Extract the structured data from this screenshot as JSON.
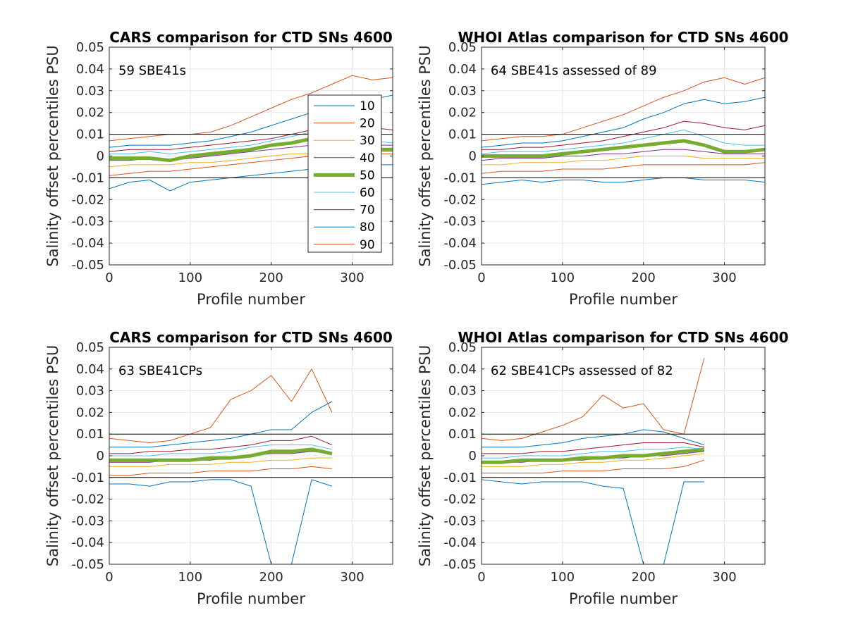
{
  "colors": {
    "10": "#0072BD",
    "20": "#D95319",
    "30": "#EDB120",
    "40": "#7E2F8E",
    "50": "#77AC30",
    "60": "#4DBEEE",
    "70": "#A2142F",
    "80": "#0072BD",
    "90": "#D95319"
  },
  "chart_data": [
    {
      "type": "line",
      "title": "CARS comparison for CTD SNs 4600",
      "annotation": "59 SBE41s",
      "xlabel": "Profile number",
      "ylabel": "Salinity offset percentiles PSU",
      "xlim": [
        0,
        350
      ],
      "ylim": [
        -0.05,
        0.05
      ],
      "xticks": [
        "0",
        "100",
        "200",
        "300"
      ],
      "yticks": [
        "-0.05",
        "-0.04",
        "-0.03",
        "-0.02",
        "-0.01",
        "0",
        "0.01",
        "0.02",
        "0.03",
        "0.04",
        "0.05"
      ],
      "grid": true,
      "reference_lines": [
        0.01,
        -0.01
      ],
      "legend": {
        "placement": "inside right",
        "entries": [
          "10",
          "20",
          "30",
          "40",
          "50",
          "60",
          "70",
          "80",
          "90"
        ]
      },
      "x": [
        0,
        25,
        50,
        75,
        100,
        125,
        150,
        175,
        200,
        225,
        250,
        275,
        300,
        325,
        350
      ],
      "series": [
        {
          "name": "10",
          "values": [
            -0.015,
            -0.012,
            -0.011,
            -0.016,
            -0.012,
            -0.011,
            -0.01,
            -0.009,
            -0.008,
            -0.007,
            -0.006,
            -0.005,
            -0.005,
            -0.004,
            -0.004
          ]
        },
        {
          "name": "20",
          "values": [
            -0.009,
            -0.008,
            -0.007,
            -0.007,
            -0.006,
            -0.005,
            -0.004,
            -0.003,
            -0.002,
            -0.001,
            0.0,
            0.0,
            0.001,
            0.001,
            0.001
          ]
        },
        {
          "name": "30",
          "values": [
            -0.005,
            -0.004,
            -0.004,
            -0.004,
            -0.003,
            -0.003,
            -0.002,
            -0.001,
            0.0,
            0.001,
            0.001,
            0.002,
            0.002,
            0.002,
            0.002
          ]
        },
        {
          "name": "40",
          "values": [
            -0.002,
            -0.002,
            -0.001,
            -0.002,
            -0.001,
            0.0,
            0.001,
            0.002,
            0.003,
            0.004,
            0.005,
            0.005,
            0.006,
            0.005,
            0.005
          ]
        },
        {
          "name": "50",
          "values": [
            -0.001,
            -0.001,
            -0.001,
            -0.002,
            0.0,
            0.001,
            0.002,
            0.003,
            0.005,
            0.006,
            0.008,
            0.006,
            0.004,
            0.003,
            0.003
          ]
        },
        {
          "name": "60",
          "values": [
            0.001,
            0.001,
            0.002,
            0.001,
            0.002,
            0.003,
            0.004,
            0.005,
            0.007,
            0.009,
            0.011,
            0.01,
            0.008,
            0.007,
            0.006
          ]
        },
        {
          "name": "70",
          "values": [
            0.002,
            0.003,
            0.003,
            0.003,
            0.004,
            0.005,
            0.006,
            0.007,
            0.008,
            0.01,
            0.012,
            0.013,
            0.014,
            0.013,
            0.012
          ]
        },
        {
          "name": "80",
          "values": [
            0.004,
            0.005,
            0.005,
            0.005,
            0.006,
            0.007,
            0.009,
            0.011,
            0.014,
            0.017,
            0.02,
            0.022,
            0.024,
            0.026,
            0.028
          ]
        },
        {
          "name": "90",
          "values": [
            0.007,
            0.008,
            0.009,
            0.01,
            0.01,
            0.011,
            0.014,
            0.018,
            0.022,
            0.026,
            0.029,
            0.033,
            0.037,
            0.035,
            0.036
          ]
        }
      ]
    },
    {
      "type": "line",
      "title": "WHOI Atlas comparison for CTD SNs 4600",
      "annotation": "64 SBE41s assessed of 89",
      "xlabel": "Profile number",
      "ylabel": "Salinity offset percentiles PSU",
      "xlim": [
        0,
        350
      ],
      "ylim": [
        -0.05,
        0.05
      ],
      "xticks": [
        "0",
        "100",
        "200",
        "300"
      ],
      "yticks": [
        "-0.05",
        "-0.04",
        "-0.03",
        "-0.02",
        "-0.01",
        "0",
        "0.01",
        "0.02",
        "0.03",
        "0.04",
        "0.05"
      ],
      "grid": true,
      "reference_lines": [
        0.01,
        -0.01
      ],
      "x": [
        0,
        25,
        50,
        75,
        100,
        125,
        150,
        175,
        200,
        225,
        250,
        275,
        300,
        325,
        350
      ],
      "series": [
        {
          "name": "10",
          "values": [
            -0.013,
            -0.012,
            -0.011,
            -0.012,
            -0.011,
            -0.011,
            -0.012,
            -0.012,
            -0.011,
            -0.01,
            -0.01,
            -0.011,
            -0.011,
            -0.011,
            -0.012
          ]
        },
        {
          "name": "20",
          "values": [
            -0.008,
            -0.007,
            -0.007,
            -0.007,
            -0.006,
            -0.006,
            -0.006,
            -0.005,
            -0.004,
            -0.004,
            -0.004,
            -0.004,
            -0.004,
            -0.004,
            -0.003
          ]
        },
        {
          "name": "30",
          "values": [
            -0.004,
            -0.004,
            -0.003,
            -0.003,
            -0.003,
            -0.002,
            -0.002,
            -0.001,
            0.0,
            0.0,
            0.0,
            -0.001,
            -0.001,
            -0.001,
            -0.001
          ]
        },
        {
          "name": "40",
          "values": [
            -0.002,
            -0.001,
            -0.001,
            -0.001,
            0.0,
            0.0,
            0.001,
            0.001,
            0.002,
            0.003,
            0.003,
            0.002,
            0.001,
            0.001,
            0.001
          ]
        },
        {
          "name": "50",
          "values": [
            0.0,
            0.0,
            0.0,
            0.0,
            0.001,
            0.002,
            0.003,
            0.004,
            0.005,
            0.006,
            0.007,
            0.005,
            0.002,
            0.002,
            0.003
          ]
        },
        {
          "name": "60",
          "values": [
            0.001,
            0.002,
            0.002,
            0.002,
            0.003,
            0.004,
            0.005,
            0.006,
            0.008,
            0.01,
            0.012,
            0.009,
            0.006,
            0.005,
            0.005
          ]
        },
        {
          "name": "70",
          "values": [
            0.003,
            0.003,
            0.004,
            0.004,
            0.005,
            0.006,
            0.007,
            0.009,
            0.011,
            0.013,
            0.016,
            0.015,
            0.013,
            0.012,
            0.014
          ]
        },
        {
          "name": "80",
          "values": [
            0.004,
            0.005,
            0.006,
            0.006,
            0.007,
            0.009,
            0.011,
            0.013,
            0.017,
            0.02,
            0.024,
            0.026,
            0.024,
            0.025,
            0.027
          ]
        },
        {
          "name": "90",
          "values": [
            0.007,
            0.008,
            0.009,
            0.009,
            0.01,
            0.013,
            0.016,
            0.019,
            0.023,
            0.027,
            0.03,
            0.034,
            0.036,
            0.033,
            0.036
          ]
        }
      ]
    },
    {
      "type": "line",
      "title": "CARS comparison for CTD SNs 4600",
      "annotation": "63 SBE41CPs",
      "xlabel": "Profile number",
      "ylabel": "Salinity offset percentiles PSU",
      "xlim": [
        0,
        350
      ],
      "ylim": [
        -0.05,
        0.05
      ],
      "xticks": [
        "0",
        "100",
        "200",
        "300"
      ],
      "yticks": [
        "-0.05",
        "-0.04",
        "-0.03",
        "-0.02",
        "-0.01",
        "0",
        "0.01",
        "0.02",
        "0.03",
        "0.04",
        "0.05"
      ],
      "grid": true,
      "reference_lines": [
        0.01,
        -0.01
      ],
      "x": [
        0,
        25,
        50,
        75,
        100,
        125,
        150,
        175,
        200,
        225,
        250,
        275
      ],
      "series": [
        {
          "name": "10",
          "values": [
            -0.013,
            -0.013,
            -0.014,
            -0.012,
            -0.012,
            -0.011,
            -0.011,
            -0.014,
            -0.05,
            -0.05,
            -0.011,
            -0.014
          ]
        },
        {
          "name": "20",
          "values": [
            -0.009,
            -0.009,
            -0.008,
            -0.008,
            -0.008,
            -0.007,
            -0.007,
            -0.007,
            -0.006,
            -0.006,
            -0.005,
            -0.006
          ]
        },
        {
          "name": "30",
          "values": [
            -0.005,
            -0.005,
            -0.005,
            -0.004,
            -0.004,
            -0.004,
            -0.003,
            -0.003,
            -0.002,
            -0.002,
            -0.001,
            -0.001
          ]
        },
        {
          "name": "40",
          "values": [
            -0.003,
            -0.003,
            -0.003,
            -0.002,
            -0.002,
            -0.002,
            -0.001,
            0.0,
            0.001,
            0.001,
            0.002,
            0.001
          ]
        },
        {
          "name": "50",
          "values": [
            -0.002,
            -0.002,
            -0.002,
            -0.002,
            -0.002,
            -0.001,
            -0.001,
            0.0,
            0.002,
            0.002,
            0.003,
            0.001
          ]
        },
        {
          "name": "60",
          "values": [
            0.0,
            0.0,
            0.0,
            0.001,
            0.001,
            0.001,
            0.002,
            0.004,
            0.005,
            0.005,
            0.005,
            0.003
          ]
        },
        {
          "name": "70",
          "values": [
            0.001,
            0.001,
            0.002,
            0.002,
            0.003,
            0.003,
            0.004,
            0.005,
            0.007,
            0.007,
            0.009,
            0.005
          ]
        },
        {
          "name": "80",
          "values": [
            0.004,
            0.004,
            0.004,
            0.005,
            0.006,
            0.007,
            0.008,
            0.01,
            0.012,
            0.012,
            0.02,
            0.025
          ]
        },
        {
          "name": "90",
          "values": [
            0.008,
            0.007,
            0.006,
            0.007,
            0.01,
            0.013,
            0.026,
            0.03,
            0.037,
            0.025,
            0.04,
            0.02
          ]
        }
      ]
    },
    {
      "type": "line",
      "title": "WHOI Atlas comparison for CTD SNs 4600",
      "annotation": "62 SBE41CPs assessed of 82",
      "xlabel": "Profile number",
      "ylabel": "Salinity offset percentiles PSU",
      "xlim": [
        0,
        350
      ],
      "ylim": [
        -0.05,
        0.05
      ],
      "xticks": [
        "0",
        "100",
        "200",
        "300"
      ],
      "yticks": [
        "-0.05",
        "-0.04",
        "-0.03",
        "-0.02",
        "-0.01",
        "0",
        "0.01",
        "0.02",
        "0.03",
        "0.04",
        "0.05"
      ],
      "grid": true,
      "reference_lines": [
        0.01,
        -0.01
      ],
      "x": [
        0,
        25,
        50,
        75,
        100,
        125,
        150,
        175,
        200,
        225,
        250,
        275
      ],
      "series": [
        {
          "name": "10",
          "values": [
            -0.011,
            -0.012,
            -0.013,
            -0.012,
            -0.012,
            -0.012,
            -0.014,
            -0.015,
            -0.05,
            -0.05,
            -0.012,
            -0.012
          ]
        },
        {
          "name": "20",
          "values": [
            -0.008,
            -0.008,
            -0.008,
            -0.008,
            -0.007,
            -0.007,
            -0.007,
            -0.006,
            -0.006,
            -0.006,
            -0.005,
            -0.002
          ]
        },
        {
          "name": "30",
          "values": [
            -0.005,
            -0.005,
            -0.005,
            -0.004,
            -0.004,
            -0.003,
            -0.003,
            -0.002,
            -0.002,
            -0.001,
            0.0,
            0.001
          ]
        },
        {
          "name": "40",
          "values": [
            -0.003,
            -0.003,
            -0.003,
            -0.002,
            -0.002,
            -0.002,
            -0.001,
            -0.001,
            0.0,
            0.0,
            0.001,
            0.002
          ]
        },
        {
          "name": "50",
          "values": [
            -0.003,
            -0.003,
            -0.002,
            -0.002,
            -0.002,
            -0.001,
            -0.001,
            0.0,
            0.0,
            0.001,
            0.002,
            0.003
          ]
        },
        {
          "name": "60",
          "values": [
            -0.001,
            -0.001,
            0.0,
            0.0,
            0.0,
            0.001,
            0.002,
            0.002,
            0.003,
            0.003,
            0.004,
            0.003
          ]
        },
        {
          "name": "70",
          "values": [
            0.001,
            0.001,
            0.001,
            0.002,
            0.002,
            0.003,
            0.004,
            0.005,
            0.006,
            0.006,
            0.006,
            0.004
          ]
        },
        {
          "name": "80",
          "values": [
            0.004,
            0.004,
            0.004,
            0.005,
            0.006,
            0.008,
            0.009,
            0.01,
            0.012,
            0.011,
            0.008,
            0.005
          ]
        },
        {
          "name": "90",
          "values": [
            0.008,
            0.007,
            0.008,
            0.011,
            0.014,
            0.018,
            0.028,
            0.022,
            0.024,
            0.012,
            0.01,
            0.045
          ]
        }
      ]
    }
  ]
}
